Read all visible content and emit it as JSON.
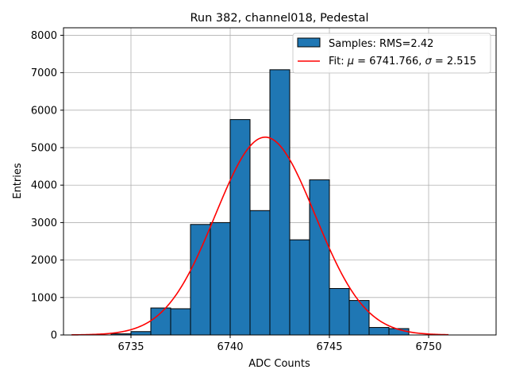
{
  "chart_data": {
    "type": "bar",
    "title": "Run 382, channel018, Pedestal",
    "xlabel": "ADC Counts",
    "ylabel": "Entries",
    "xlim": [
      6731.6,
      6753.4
    ],
    "ylim": [
      0,
      8200
    ],
    "grid": true,
    "legend_position": "top-right",
    "xticks": [
      6735,
      6740,
      6745,
      6750
    ],
    "yticks": [
      0,
      1000,
      2000,
      3000,
      4000,
      5000,
      6000,
      7000,
      8000
    ],
    "histogram": {
      "name": "Samples: RMS=2.42",
      "color": "#1f77b4",
      "bin_edges": [
        6732,
        6733,
        6734,
        6735,
        6736,
        6737,
        6738,
        6739,
        6740,
        6741,
        6742,
        6743,
        6744,
        6745,
        6746,
        6747,
        6748,
        6749,
        6750,
        6751,
        6752,
        6753
      ],
      "counts": [
        0,
        0,
        30,
        90,
        720,
        700,
        2950,
        3000,
        5750,
        3320,
        7080,
        2540,
        4140,
        1240,
        920,
        200,
        170,
        0,
        0,
        0,
        0
      ]
    },
    "fit": {
      "name": "Fit: μ = 6741.766, σ = 2.515",
      "color": "#ff0000",
      "mu": 6741.766,
      "sigma": 2.515,
      "amplitude": 5280,
      "x_range": [
        6732,
        6751
      ]
    },
    "legend": {
      "samples_label": "Samples: RMS=2.42",
      "fit_label_prefix": "Fit: ",
      "fit_mu_symbol": "μ",
      "fit_mu_text": " = 6741.766, ",
      "fit_sigma_symbol": "σ",
      "fit_sigma_text": " = 2.515"
    }
  }
}
